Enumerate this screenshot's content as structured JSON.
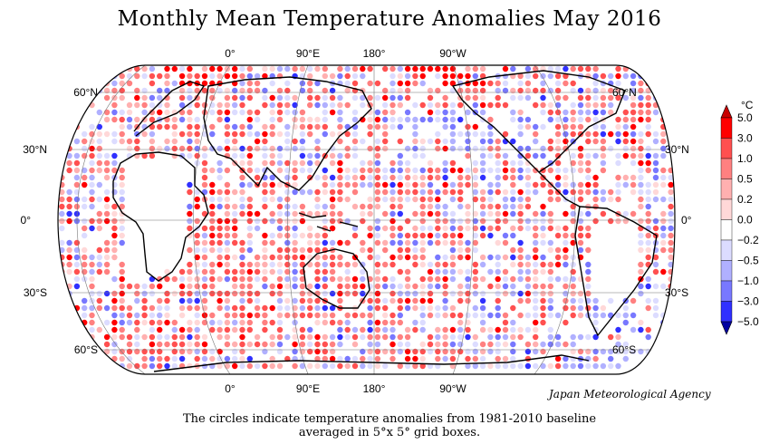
{
  "title": "Monthly Mean Temperature Anomalies May 2016",
  "credit": "Japan Meteorological Agency",
  "caption": {
    "line1": "The circles indicate temperature anomalies from 1981-2010 baseline",
    "line2": "averaged in 5°x 5° grid boxes."
  },
  "map": {
    "top_lon_labels": [
      "0°",
      "90°E",
      "180°",
      "90°W"
    ],
    "bottom_lon_labels": [
      "0°",
      "90°E",
      "180°",
      "90°W"
    ],
    "left_lat_labels": [
      "60°N",
      "30°N",
      "0°",
      "30°S",
      "60°S"
    ],
    "right_lat_labels": [
      "60°N",
      "30°N",
      "0°",
      "30°S",
      "60°S"
    ]
  },
  "legend": {
    "unit": "°C",
    "labels": [
      "5.0",
      "3.0",
      "1.0",
      "0.5",
      "0.2",
      "0.0",
      "−0.2",
      "−0.5",
      "−1.0",
      "−3.0",
      "−5.0"
    ],
    "colors": [
      "#ff0000",
      "#ff5050",
      "#ff8080",
      "#ffb0b0",
      "#ffd8d8",
      "#ffffff",
      "#dcdcff",
      "#b0b0ff",
      "#7878ff",
      "#3030ff",
      "#0000ff"
    ]
  }
}
